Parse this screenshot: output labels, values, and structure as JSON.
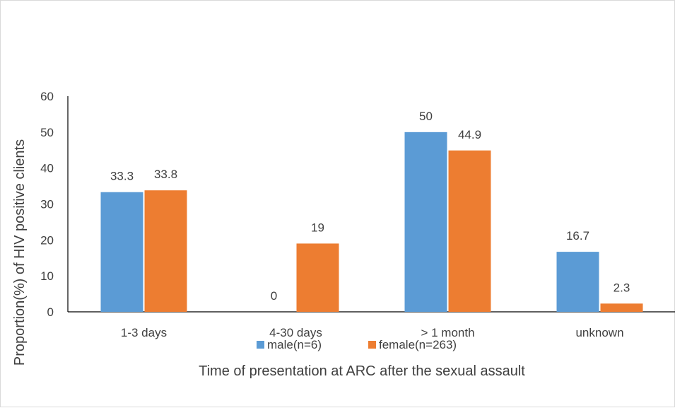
{
  "chart_data": {
    "type": "bar",
    "title": "",
    "xlabel": "Time  of presentation at ARC after the sexual assault",
    "ylabel": "Proportion(%) of HIV positive clients",
    "categories": [
      "1-3 days",
      "4-30 days",
      "> 1 month",
      "unknown"
    ],
    "series": [
      {
        "name": "male(n=6)",
        "values": [
          33.3,
          0,
          50,
          16.7
        ],
        "color": "#5b9bd5"
      },
      {
        "name": "female(n=263)",
        "values": [
          33.8,
          19,
          44.9,
          2.3
        ],
        "color": "#ed7d31"
      }
    ],
    "data_labels": [
      [
        "33.3",
        "0",
        "50",
        "16.7"
      ],
      [
        "33.8",
        "19",
        "44.9",
        "2.3"
      ]
    ],
    "ylim": [
      0,
      60
    ],
    "yticks": [
      "0",
      "10",
      "20",
      "30",
      "40",
      "50",
      "60"
    ],
    "grid": false,
    "legend_position": "bottom"
  }
}
